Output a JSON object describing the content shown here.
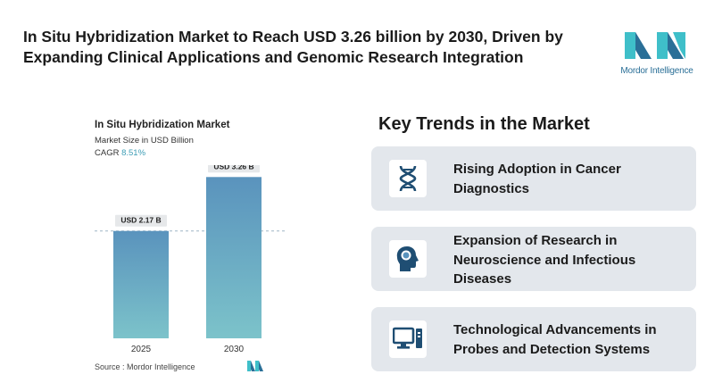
{
  "headline": "In Situ Hybridization Market to Reach USD 3.26 billion by 2030, Driven by Expanding Clinical Applications and Genomic Research Integration",
  "brand": {
    "name": "Mordor Intelligence",
    "color": "#2a6f97",
    "accent": "#3fbfc9"
  },
  "chart_data": {
    "type": "bar",
    "title": "In Situ Hybridization Market",
    "subtitle": "Market Size in USD Billion",
    "cagr_label": "CAGR",
    "cagr_value": "8.51%",
    "categories": [
      "2025",
      "2030"
    ],
    "values": [
      2.17,
      3.26
    ],
    "value_labels": [
      "USD 2.17 B",
      "USD 3.26 B"
    ],
    "xlabel": "",
    "ylabel": "",
    "ylim": [
      0,
      3.5
    ],
    "grid": false,
    "reference_line": true,
    "bar_colors": [
      "#5a93bd",
      "#7cc3ca"
    ],
    "source": "Source :  Mordor Intelligence"
  },
  "trends": {
    "title": "Key Trends in the Market",
    "items": [
      {
        "icon": "dna-icon",
        "label": "Rising Adoption in Cancer Diagnostics"
      },
      {
        "icon": "brain-head-icon",
        "label": "Expansion of Research in Neuroscience and Infectious Diseases"
      },
      {
        "icon": "computer-icon",
        "label": "Technological Advancements in Probes and Detection Systems"
      }
    ]
  }
}
